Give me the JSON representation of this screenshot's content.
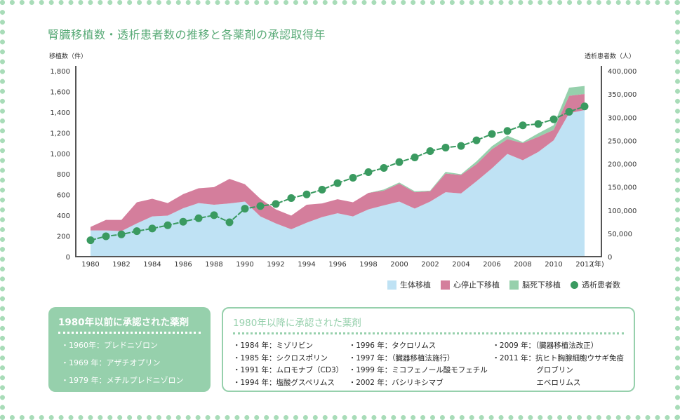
{
  "title": "腎臓移植数・透析患者数の推移と各薬剤の承認取得年",
  "chart_data": {
    "type": "area",
    "stacked": true,
    "left_axis_label": "移植数（件）",
    "right_axis_label": "透析患者数（人）",
    "x_unit_label": "(年)",
    "x": [
      1980,
      1981,
      1982,
      1983,
      1984,
      1985,
      1986,
      1987,
      1988,
      1989,
      1990,
      1991,
      1992,
      1993,
      1994,
      1995,
      1996,
      1997,
      1998,
      1999,
      2000,
      2001,
      2002,
      2003,
      2004,
      2005,
      2006,
      2007,
      2008,
      2009,
      2010,
      2011,
      2012
    ],
    "x_ticks": [
      "1980",
      "1982",
      "1984",
      "1986",
      "1988",
      "1990",
      "1992",
      "1994",
      "1996",
      "1998",
      "2000",
      "2002",
      "2004",
      "2006",
      "2008",
      "2010",
      "2012"
    ],
    "y_left_ticks": [
      "0",
      "200",
      "400",
      "600",
      "800",
      "1,000",
      "1,200",
      "1,400",
      "1,600",
      "1,800"
    ],
    "y_left_range": [
      0,
      1800
    ],
    "y_right_ticks": [
      "0",
      "50,000",
      "100,000",
      "150,000",
      "200,000",
      "250,000",
      "300,000",
      "350,000",
      "400,000"
    ],
    "y_right_range": [
      0,
      400000
    ],
    "series": [
      {
        "name": "生体移植",
        "axis": "left",
        "kind": "area",
        "color": "#bfe2f4",
        "values": [
          254,
          254,
          247,
          322,
          390,
          397,
          469,
          519,
          503,
          515,
          533,
          390,
          322,
          265,
          329,
          383,
          420,
          390,
          458,
          497,
          533,
          465,
          533,
          624,
          612,
          730,
          855,
          995,
          934,
          1014,
          1127,
          1390,
          1420
        ]
      },
      {
        "name": "心停止下移植",
        "axis": "left",
        "kind": "area",
        "color": "#d47e9c",
        "values": [
          34,
          102,
          109,
          204,
          170,
          122,
          136,
          143,
          170,
          238,
          168,
          170,
          136,
          132,
          174,
          132,
          136,
          136,
          159,
          142,
          174,
          159,
          100,
          181,
          179,
          166,
          186,
          143,
          166,
          147,
          102,
          168,
          156
        ]
      },
      {
        "name": "脳死下移植",
        "axis": "left",
        "kind": "area",
        "color": "#96d0ac",
        "values": [
          0,
          0,
          0,
          0,
          0,
          0,
          0,
          0,
          0,
          0,
          0,
          0,
          0,
          0,
          0,
          0,
          0,
          0,
          0,
          11,
          11,
          9,
          6,
          16,
          7,
          27,
          29,
          34,
          9,
          34,
          45,
          79,
          77
        ]
      },
      {
        "name": "透析患者数",
        "axis": "right",
        "kind": "line",
        "color": "#3a9a60",
        "values": [
          35300,
          43800,
          47900,
          54900,
          60500,
          67500,
          75100,
          82600,
          89200,
          74000,
          103300,
          108800,
          113400,
          126000,
          134000,
          144100,
          158200,
          169800,
          181900,
          190900,
          203500,
          213600,
          227200,
          234800,
          238300,
          250400,
          264000,
          270500,
          282600,
          285600,
          295700,
          311800,
          323400
        ]
      }
    ],
    "legend_position": "bottom-right"
  },
  "before1980": {
    "title": "1980年以前に承認された薬剤",
    "items": [
      "・1960年：プレドニゾロン",
      "・1969 年：アザチオプリン",
      "・1979 年：メチルプレドニゾロン"
    ]
  },
  "after1980": {
    "title": "1980年以降に承認された薬剤",
    "col1": [
      "・1984 年：ミゾリビン",
      "・1985 年：シクロスポリン",
      "・1991 年：ムロモナブ（CD3）",
      "・1994 年：塩酸グスペリムス"
    ],
    "col2": [
      "・1996 年：タクロリムス",
      "・1997 年：（臓器移植法施行）",
      "・1999 年：ミコフェノール酸モフェチル",
      "・2002 年：バシリキシマブ"
    ],
    "col3": [
      "・2009 年：（臓器移植法改正）",
      "・2011 年：抗ヒト胸腺細胞ウサギ免疫",
      "　　　　　　グロブリン",
      "　　　　　　エベロリムス"
    ]
  }
}
